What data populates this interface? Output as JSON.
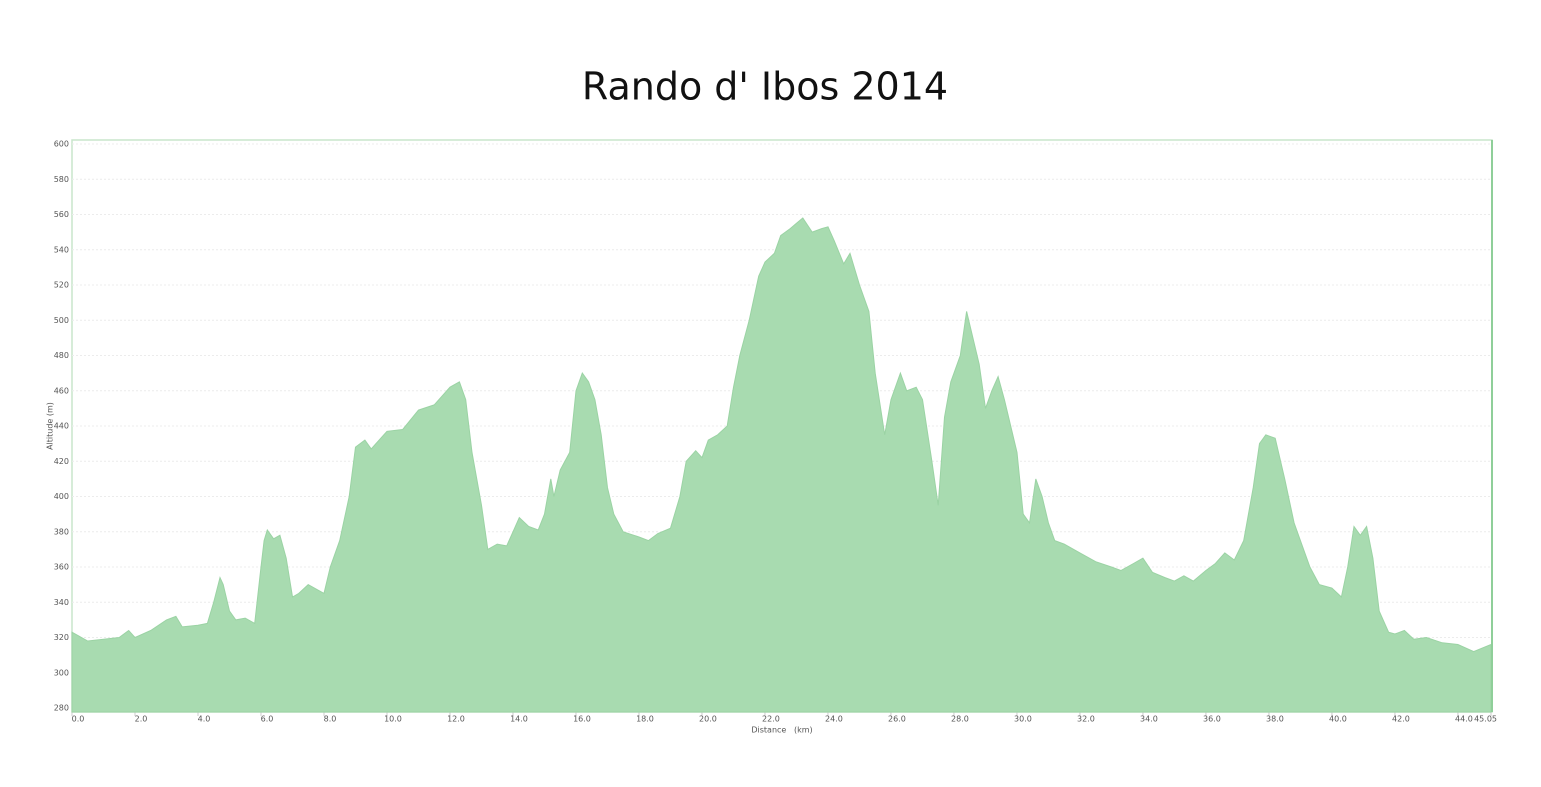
{
  "chart_data": {
    "type": "area",
    "title": "Rando d' Ibos 2014",
    "x_label": "Distance   (km)",
    "y_label": "Altitude (m)",
    "color": "#a8dbb0",
    "grid": true,
    "xlim": [
      0,
      45.05
    ],
    "ylim": [
      280,
      600
    ],
    "xticks": [
      {
        "value": 0,
        "label": "0.0"
      },
      {
        "value": 2,
        "label": "2.0"
      },
      {
        "value": 4,
        "label": "4.0"
      },
      {
        "value": 6,
        "label": "6.0"
      },
      {
        "value": 8,
        "label": "8.0"
      },
      {
        "value": 10,
        "label": "10.0"
      },
      {
        "value": 12,
        "label": "12.0"
      },
      {
        "value": 14,
        "label": "14.0"
      },
      {
        "value": 16,
        "label": "16.0"
      },
      {
        "value": 18,
        "label": "18.0"
      },
      {
        "value": 20,
        "label": "20.0"
      },
      {
        "value": 22,
        "label": "22.0"
      },
      {
        "value": 24,
        "label": "24.0"
      },
      {
        "value": 26,
        "label": "26.0"
      },
      {
        "value": 28,
        "label": "28.0"
      },
      {
        "value": 30,
        "label": "30.0"
      },
      {
        "value": 32,
        "label": "32.0"
      },
      {
        "value": 34,
        "label": "34.0"
      },
      {
        "value": 36,
        "label": "36.0"
      },
      {
        "value": 38,
        "label": "38.0"
      },
      {
        "value": 40,
        "label": "40.0"
      },
      {
        "value": 42,
        "label": "42.0"
      },
      {
        "value": 44,
        "label": "44.0"
      },
      45.05
    ],
    "yticks": [
      280,
      300,
      320,
      340,
      360,
      380,
      400,
      420,
      440,
      460,
      480,
      500,
      520,
      540,
      560,
      580,
      600
    ],
    "x": [
      0,
      0.5,
      1,
      1.5,
      1.8,
      2,
      2.5,
      3,
      3.3,
      3.5,
      4,
      4.3,
      4.5,
      4.7,
      4.8,
      5,
      5.2,
      5.5,
      5.8,
      6,
      6.1,
      6.2,
      6.4,
      6.6,
      6.8,
      7,
      7.2,
      7.5,
      7.8,
      8,
      8.2,
      8.5,
      8.8,
      9,
      9.3,
      9.5,
      10,
      10.5,
      11,
      11.5,
      12,
      12.3,
      12.5,
      12.7,
      13,
      13.2,
      13.5,
      13.8,
      14,
      14.2,
      14.5,
      14.8,
      15,
      15.2,
      15.3,
      15.5,
      15.8,
      16,
      16.2,
      16.4,
      16.6,
      16.8,
      17,
      17.2,
      17.5,
      18,
      18.3,
      18.6,
      19,
      19.3,
      19.5,
      19.8,
      20,
      20.2,
      20.5,
      20.8,
      21,
      21.2,
      21.5,
      21.8,
      22,
      22.3,
      22.5,
      22.8,
      23,
      23.2,
      23.5,
      23.8,
      24,
      24.2,
      24.5,
      24.7,
      25,
      25.3,
      25.5,
      25.8,
      26,
      26.3,
      26.5,
      26.8,
      27,
      27.3,
      27.5,
      27.7,
      27.9,
      28,
      28.2,
      28.4,
      28.6,
      28.8,
      29,
      29.2,
      29.4,
      29.6,
      29.8,
      30,
      30.2,
      30.4,
      30.6,
      30.8,
      31,
      31.2,
      31.5,
      32,
      32.5,
      33,
      33.3,
      33.7,
      34,
      34.3,
      34.7,
      35,
      35.3,
      35.6,
      36,
      36.3,
      36.6,
      36.9,
      37.2,
      37.5,
      37.7,
      37.9,
      38.2,
      38.5,
      38.8,
      39,
      39.3,
      39.6,
      40,
      40.3,
      40.5,
      40.7,
      40.9,
      41.1,
      41.3,
      41.5,
      41.8,
      42,
      42.3,
      42.6,
      43,
      43.5,
      44,
      44.5,
      45.05
    ],
    "values": [
      323,
      318,
      319,
      320,
      324,
      320,
      324,
      330,
      332,
      326,
      327,
      328,
      340,
      354,
      350,
      335,
      330,
      331,
      328,
      360,
      375,
      381,
      376,
      378,
      365,
      343,
      345,
      350,
      347,
      345,
      360,
      375,
      400,
      428,
      432,
      427,
      437,
      438,
      449,
      452,
      462,
      465,
      455,
      425,
      395,
      370,
      373,
      372,
      380,
      388,
      383,
      381,
      390,
      410,
      400,
      415,
      425,
      460,
      470,
      465,
      455,
      435,
      405,
      390,
      380,
      377,
      375,
      379,
      382,
      400,
      420,
      426,
      422,
      432,
      435,
      440,
      462,
      480,
      500,
      525,
      533,
      538,
      548,
      552,
      555,
      558,
      550,
      552,
      553,
      545,
      532,
      538,
      520,
      505,
      470,
      435,
      455,
      470,
      460,
      462,
      455,
      420,
      395,
      445,
      465,
      470,
      480,
      505,
      490,
      475,
      450,
      460,
      468,
      455,
      440,
      425,
      390,
      385,
      410,
      400,
      385,
      375,
      373,
      368,
      363,
      360,
      358,
      362,
      365,
      357,
      354,
      352,
      355,
      352,
      358,
      362,
      368,
      364,
      375,
      405,
      430,
      435,
      433,
      410,
      385,
      375,
      360,
      350,
      348,
      343,
      360,
      383,
      378,
      383,
      365,
      335,
      323,
      322,
      324,
      319,
      320,
      317,
      316,
      312,
      316
    ]
  }
}
